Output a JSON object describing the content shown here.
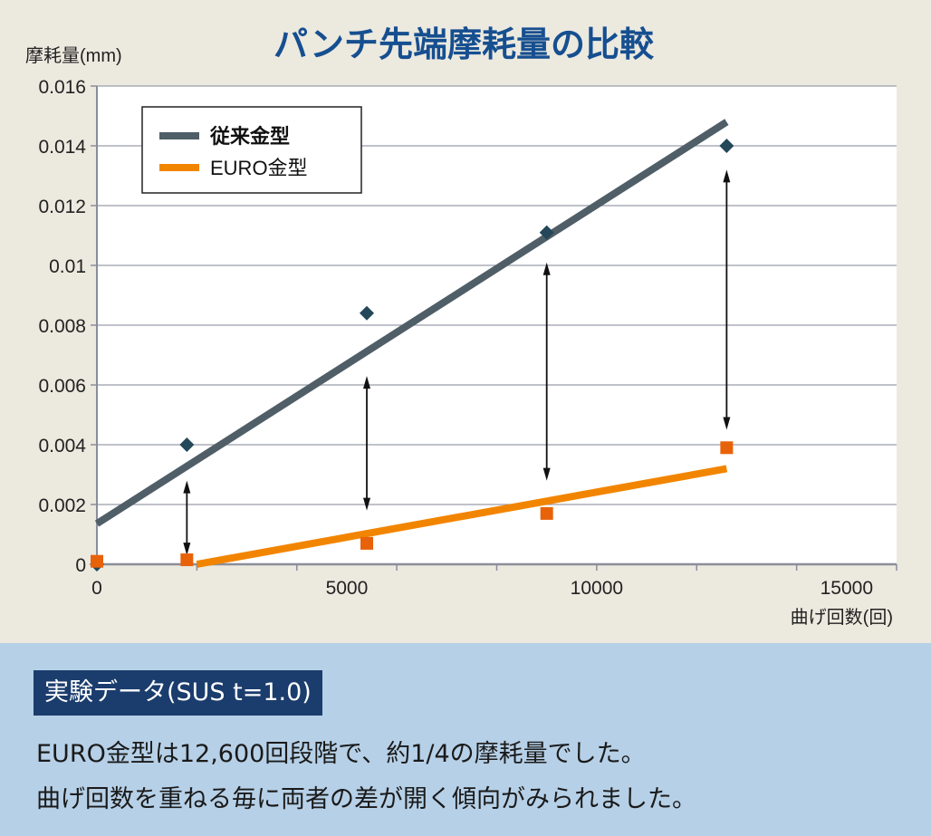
{
  "chart_data": {
    "type": "scatter",
    "title": "パンチ先端摩耗量の比較",
    "ylabel": "摩耗量(mm)",
    "xlabel": "曲げ回数(回)",
    "xlim": [
      0,
      16000
    ],
    "ylim": [
      0,
      0.016
    ],
    "xticks": [
      0,
      5000,
      10000,
      15000
    ],
    "xticks_minor_step": 2000,
    "yticks": [
      "0",
      "0.002",
      "0.004",
      "0.006",
      "0.008",
      "0.01",
      "0.012",
      "0.014",
      "0.016"
    ],
    "grid": "horizontal",
    "legend_position": "top-left",
    "series": [
      {
        "name": "従来金型",
        "color": "#4f5e67",
        "marker_color": "#24475a",
        "marker": "diamond",
        "points": [
          [
            0,
            0
          ],
          [
            1800,
            0.004
          ],
          [
            5400,
            0.0084
          ],
          [
            9000,
            0.0111
          ],
          [
            12600,
            0.014
          ]
        ],
        "trendline": [
          [
            0,
            0.00136
          ],
          [
            12600,
            0.0148
          ]
        ]
      },
      {
        "name": "EURO金型",
        "color": "#f28500",
        "marker_color": "#e8620a",
        "marker": "square",
        "points": [
          [
            0,
            0.0001
          ],
          [
            1800,
            0.00015
          ],
          [
            5400,
            0.0007
          ],
          [
            9000,
            0.0017
          ],
          [
            12600,
            0.0039
          ]
        ],
        "trendline": [
          [
            2000,
            0
          ],
          [
            12600,
            0.0032
          ]
        ]
      }
    ],
    "arrows": [
      {
        "x": 1800,
        "from": 0.0028,
        "to": 0.0003
      },
      {
        "x": 5400,
        "from": 0.0063,
        "to": 0.0018
      },
      {
        "x": 9000,
        "from": 0.0101,
        "to": 0.0028
      },
      {
        "x": 12600,
        "from": 0.0132,
        "to": 0.0045
      }
    ]
  },
  "colors": {
    "background": "#ece9df",
    "title": "#164f90",
    "panel": "#b6d0e7",
    "label_box": "#1b3d6d"
  },
  "bottom": {
    "label": "実験データ(SUS t=1.0)",
    "lines": [
      "EURO金型は12,600回段階で、約1/4の摩耗量でした。",
      "曲げ回数を重ねる毎に両者の差が開く傾向がみられました。"
    ]
  }
}
